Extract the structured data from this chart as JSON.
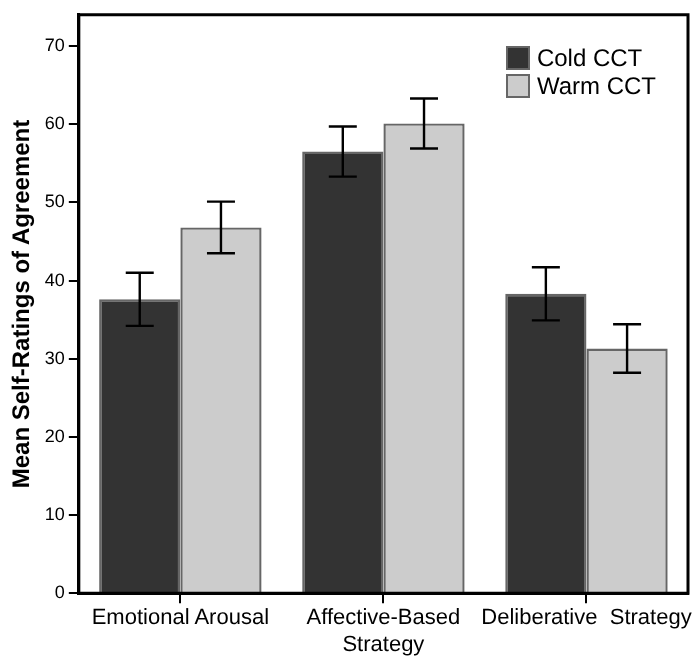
{
  "chart_data": {
    "type": "bar",
    "ylabel": "Mean Self-Ratings of Agreement",
    "categories": [
      "Emotional Arousal",
      "Affective-Based Strategy",
      "Deliberative  Strategy"
    ],
    "series": [
      {
        "name": "Cold CCT",
        "color": "#333333",
        "values": [
          37.6,
          56.5,
          38.3
        ],
        "errors": [
          3.4,
          3.2,
          3.4
        ]
      },
      {
        "name": "Warm CCT",
        "color": "#cccccc",
        "values": [
          46.8,
          60.1,
          31.3
        ],
        "errors": [
          3.3,
          3.2,
          3.1
        ]
      }
    ],
    "ylim": [
      0,
      74
    ],
    "yticks": [
      0,
      10,
      20,
      30,
      40,
      50,
      60,
      70
    ],
    "legend": "top right"
  }
}
